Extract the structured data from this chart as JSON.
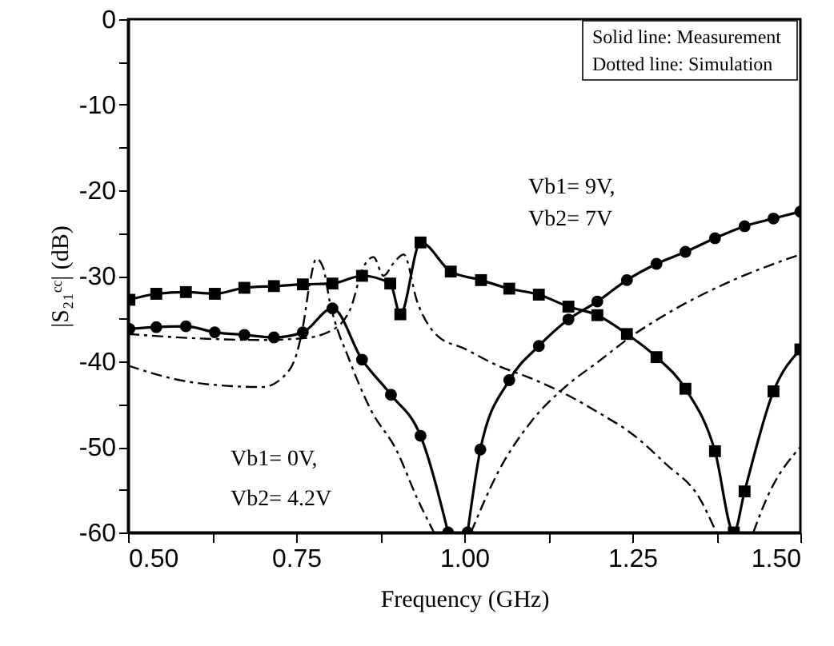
{
  "chart_data": {
    "type": "line",
    "xlabel": "Frequency (GHz)",
    "ylabel": "|S₂₁ᶜᶜ| (dB)",
    "xlim": [
      0.5,
      1.5
    ],
    "ylim": [
      -60,
      0
    ],
    "xticks": [
      {
        "value": 0.5,
        "label": "0.50"
      },
      {
        "value": 0.625,
        "label": null
      },
      {
        "value": 0.75,
        "label": "0.75"
      },
      {
        "value": 0.875,
        "label": null
      },
      {
        "value": 1.0,
        "label": "1.00"
      },
      {
        "value": 1.125,
        "label": null
      },
      1.25,
      {
        "value": 1.375,
        "label": null
      },
      {
        "value": 1.5,
        "label": "1.50"
      }
    ],
    "yticks": [
      0,
      {
        "value": -5,
        "label": null
      },
      -10,
      {
        "value": -15,
        "label": null
      },
      -20,
      {
        "value": -25,
        "label": null
      },
      -30,
      {
        "value": -35,
        "label": null
      },
      -40,
      {
        "value": -45,
        "label": null
      },
      -50,
      {
        "value": -55,
        "label": null
      },
      -60
    ],
    "grid": false,
    "series": [
      {
        "color": "#000000",
        "marker": "square",
        "line_style": "solid",
        "x": [
          0.502,
          0.542,
          0.586,
          0.629,
          0.673,
          0.717,
          0.76,
          0.804,
          0.848,
          0.89,
          0.905,
          0.935,
          0.98,
          1.025,
          1.067,
          1.111,
          1.155,
          1.198,
          1.242,
          1.286,
          1.329,
          1.373,
          1.401,
          1.417,
          1.46,
          1.5
        ],
        "values": [
          -32.8,
          -32.1,
          -31.9,
          -32.1,
          -31.4,
          -31.2,
          -31.0,
          -30.9,
          -30.0,
          -30.9,
          -34.5,
          -26.1,
          -29.5,
          -30.5,
          -31.5,
          -32.2,
          -33.6,
          -34.6,
          -36.8,
          -39.5,
          -43.2,
          -50.5,
          -60,
          -55.2,
          -43.5,
          -38.6
        ]
      },
      {
        "color": "#000000",
        "marker": "circle",
        "line_style": "solid",
        "x": [
          0.502,
          0.542,
          0.586,
          0.629,
          0.673,
          0.717,
          0.76,
          0.804,
          0.848,
          0.891,
          0.935,
          0.976,
          0.99,
          1.005,
          1.024,
          1.067,
          1.111,
          1.155,
          1.198,
          1.242,
          1.286,
          1.329,
          1.373,
          1.417,
          1.46,
          1.5
        ],
        "values": [
          -36.2,
          -36.0,
          -35.9,
          -36.6,
          -36.9,
          -37.2,
          -36.6,
          -33.8,
          -39.8,
          -43.9,
          -48.7,
          -60,
          null,
          -60,
          -50.3,
          -42.2,
          -38.2,
          -35.1,
          -33.0,
          -30.5,
          -28.6,
          -27.2,
          -25.6,
          -24.2,
          -23.3,
          -22.5
        ]
      },
      {
        "color": "#000000",
        "marker": "none",
        "line_style": "dashed",
        "x": [
          0.5,
          0.6,
          0.7,
          0.76,
          0.8,
          0.83,
          0.85,
          0.865,
          0.88,
          0.895,
          0.91,
          0.93,
          0.96,
          1.0,
          1.05,
          1.1,
          1.155,
          1.2,
          1.25,
          1.3,
          1.35,
          1.375,
          1.4,
          1.43,
          1.45,
          1.5
        ],
        "values": [
          -36.8,
          -37.3,
          -37.5,
          -37.3,
          -36.5,
          -34,
          -29,
          -27.8,
          -30,
          -28.5,
          -27.5,
          -33,
          -37,
          -38.5,
          -40.5,
          -42,
          -44,
          -46,
          -48.5,
          -52,
          -56,
          -60,
          null,
          -60,
          -56,
          -50
        ]
      },
      {
        "color": "#000000",
        "marker": "none",
        "line_style": "dashed",
        "x": [
          0.5,
          0.6,
          0.7,
          0.74,
          0.76,
          0.77,
          0.78,
          0.79,
          0.8,
          0.83,
          0.86,
          0.9,
          0.93,
          0.955,
          0.98,
          1.01,
          1.05,
          1.1,
          1.15,
          1.2,
          1.25,
          1.3,
          1.4,
          1.5
        ],
        "values": [
          -40.5,
          -42.5,
          -43,
          -41,
          -36,
          -31,
          -28,
          -29,
          -33,
          -40,
          -45.5,
          -50.5,
          -56,
          -60,
          null,
          -60,
          -53,
          -47,
          -43,
          -40,
          -37,
          -34.5,
          -30.5,
          -27.5
        ]
      }
    ],
    "annotations": [
      "Solid line: Measurement",
      "Dotted line: Simulation",
      "Vb1= 9V,",
      "Vb2= 7V",
      "Vb1= 0V,",
      "Vb2= 4.2V"
    ]
  }
}
